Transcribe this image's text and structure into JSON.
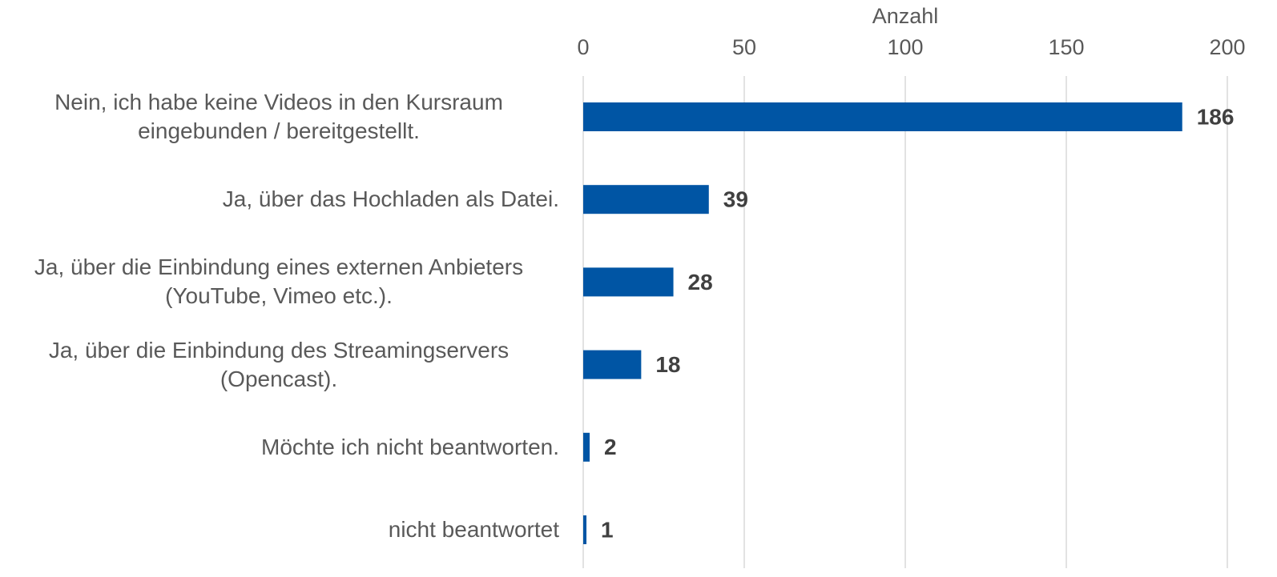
{
  "chart_data": {
    "type": "bar",
    "orientation": "horizontal",
    "x_label": "Anzahl",
    "categories": [
      "Nein, ich habe keine Videos in den Kursraum eingebunden / bereitgestellt.",
      "Ja, über das Hochladen als Datei.",
      "Ja, über die Einbindung eines externen Anbieters (YouTube, Vimeo etc.).",
      "Ja, über die Einbindung des Streamingservers (Opencast).",
      "Möchte ich nicht beantworten.",
      "nicht beantwortet"
    ],
    "values": [
      186,
      39,
      28,
      18,
      2,
      1
    ],
    "color": "#0055a4",
    "xlim": [
      0,
      200
    ],
    "xticks": [
      0,
      50,
      100,
      150,
      200
    ],
    "grid": true
  }
}
